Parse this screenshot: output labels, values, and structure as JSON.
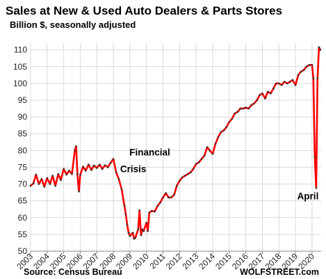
{
  "chart_data": {
    "type": "line",
    "title": "Sales at New & Used Auto Dealers & Parts Stores",
    "subtitle": "Billion $, seasonally adjusted",
    "xlabel": "",
    "ylabel": "",
    "ylim": [
      50,
      112
    ],
    "xlim": [
      2003.0,
      2020.55
    ],
    "yticks": [
      50,
      55,
      60,
      65,
      70,
      75,
      80,
      85,
      90,
      95,
      100,
      105,
      110
    ],
    "xticks": [
      "2003",
      "2004",
      "2005",
      "2006",
      "2007",
      "2008",
      "2009",
      "2010",
      "2011",
      "2012",
      "2013",
      "2014",
      "2015",
      "2016",
      "2017",
      "2018",
      "2019",
      "2020"
    ],
    "grid": true,
    "colors": {
      "line": "#ff0000",
      "markers": "#333333",
      "grid": "#d9d9d9"
    },
    "annotations": [
      {
        "text": "Financial",
        "x": 2010.2,
        "y": 78.5
      },
      {
        "text": "Crisis",
        "x": 2009.2,
        "y": 73.5
      },
      {
        "text": "April",
        "x": 2019.75,
        "y": 65.5
      }
    ],
    "source": "Source: Census Bureau",
    "credit": "WOLFSTREET.com",
    "series": [
      {
        "points": [
          [
            2003.0,
            69.5
          ],
          [
            2003.17,
            70.2
          ],
          [
            2003.33,
            72.8
          ],
          [
            2003.5,
            70.0
          ],
          [
            2003.67,
            71.5
          ],
          [
            2003.83,
            69.2
          ],
          [
            2004.0,
            71.8
          ],
          [
            2004.17,
            70.0
          ],
          [
            2004.33,
            72.5
          ],
          [
            2004.5,
            69.5
          ],
          [
            2004.67,
            73.0
          ],
          [
            2004.83,
            71.2
          ],
          [
            2005.0,
            74.5
          ],
          [
            2005.17,
            72.8
          ],
          [
            2005.33,
            74.0
          ],
          [
            2005.5,
            73.0
          ],
          [
            2005.67,
            80.0
          ],
          [
            2005.75,
            81.3
          ],
          [
            2005.83,
            73.0
          ],
          [
            2005.92,
            67.8
          ],
          [
            2006.0,
            72.8
          ],
          [
            2006.17,
            75.2
          ],
          [
            2006.33,
            74.0
          ],
          [
            2006.5,
            75.8
          ],
          [
            2006.67,
            74.2
          ],
          [
            2006.83,
            75.5
          ],
          [
            2007.0,
            74.8
          ],
          [
            2007.17,
            75.8
          ],
          [
            2007.33,
            74.5
          ],
          [
            2007.5,
            75.6
          ],
          [
            2007.67,
            75.0
          ],
          [
            2007.83,
            76.3
          ],
          [
            2008.0,
            77.5
          ],
          [
            2008.17,
            73.5
          ],
          [
            2008.33,
            71.5
          ],
          [
            2008.5,
            68.5
          ],
          [
            2008.67,
            63.5
          ],
          [
            2008.75,
            61.0
          ],
          [
            2008.83,
            58.0
          ],
          [
            2008.92,
            55.5
          ],
          [
            2009.0,
            54.5
          ],
          [
            2009.17,
            55.5
          ],
          [
            2009.25,
            53.7
          ],
          [
            2009.33,
            54.0
          ],
          [
            2009.5,
            56.5
          ],
          [
            2009.58,
            62.2
          ],
          [
            2009.67,
            54.8
          ],
          [
            2009.75,
            56.5
          ],
          [
            2009.83,
            56.0
          ],
          [
            2010.0,
            58.5
          ],
          [
            2010.08,
            56.0
          ],
          [
            2010.17,
            61.5
          ],
          [
            2010.33,
            62.0
          ],
          [
            2010.5,
            61.8
          ],
          [
            2010.67,
            63.5
          ],
          [
            2010.83,
            64.5
          ],
          [
            2011.0,
            66.0
          ],
          [
            2011.17,
            67.3
          ],
          [
            2011.33,
            66.0
          ],
          [
            2011.5,
            66.0
          ],
          [
            2011.67,
            66.8
          ],
          [
            2011.83,
            69.5
          ],
          [
            2012.0,
            71.0
          ],
          [
            2012.17,
            72.0
          ],
          [
            2012.33,
            72.5
          ],
          [
            2012.5,
            73.0
          ],
          [
            2012.67,
            73.5
          ],
          [
            2012.83,
            74.5
          ],
          [
            2013.0,
            76.0
          ],
          [
            2013.17,
            76.5
          ],
          [
            2013.33,
            77.5
          ],
          [
            2013.5,
            78.5
          ],
          [
            2013.67,
            81.0
          ],
          [
            2013.83,
            80.0
          ],
          [
            2014.0,
            79.0
          ],
          [
            2014.17,
            82.0
          ],
          [
            2014.33,
            84.0
          ],
          [
            2014.5,
            85.5
          ],
          [
            2014.67,
            86.0
          ],
          [
            2014.83,
            87.0
          ],
          [
            2015.0,
            88.5
          ],
          [
            2015.17,
            89.5
          ],
          [
            2015.33,
            91.0
          ],
          [
            2015.5,
            91.5
          ],
          [
            2015.67,
            92.5
          ],
          [
            2015.83,
            92.5
          ],
          [
            2016.0,
            92.8
          ],
          [
            2016.17,
            92.5
          ],
          [
            2016.33,
            93.5
          ],
          [
            2016.5,
            94.0
          ],
          [
            2016.67,
            95.0
          ],
          [
            2016.83,
            96.5
          ],
          [
            2017.0,
            97.0
          ],
          [
            2017.17,
            95.5
          ],
          [
            2017.33,
            97.5
          ],
          [
            2017.5,
            97.0
          ],
          [
            2017.67,
            98.5
          ],
          [
            2017.83,
            100.0
          ],
          [
            2018.0,
            100.0
          ],
          [
            2018.17,
            99.5
          ],
          [
            2018.33,
            100.5
          ],
          [
            2018.5,
            100.0
          ],
          [
            2018.67,
            100.5
          ],
          [
            2018.83,
            101.0
          ],
          [
            2019.0,
            99.5
          ],
          [
            2019.17,
            102.5
          ],
          [
            2019.33,
            103.5
          ],
          [
            2019.5,
            104.0
          ],
          [
            2019.67,
            105.0
          ],
          [
            2019.83,
            105.5
          ],
          [
            2020.0,
            105.5
          ],
          [
            2020.08,
            101.5
          ],
          [
            2020.17,
            78.0
          ],
          [
            2020.25,
            68.8
          ],
          [
            2020.33,
            101.5
          ],
          [
            2020.42,
            110.8
          ],
          [
            2020.5,
            110.0
          ]
        ]
      }
    ]
  }
}
